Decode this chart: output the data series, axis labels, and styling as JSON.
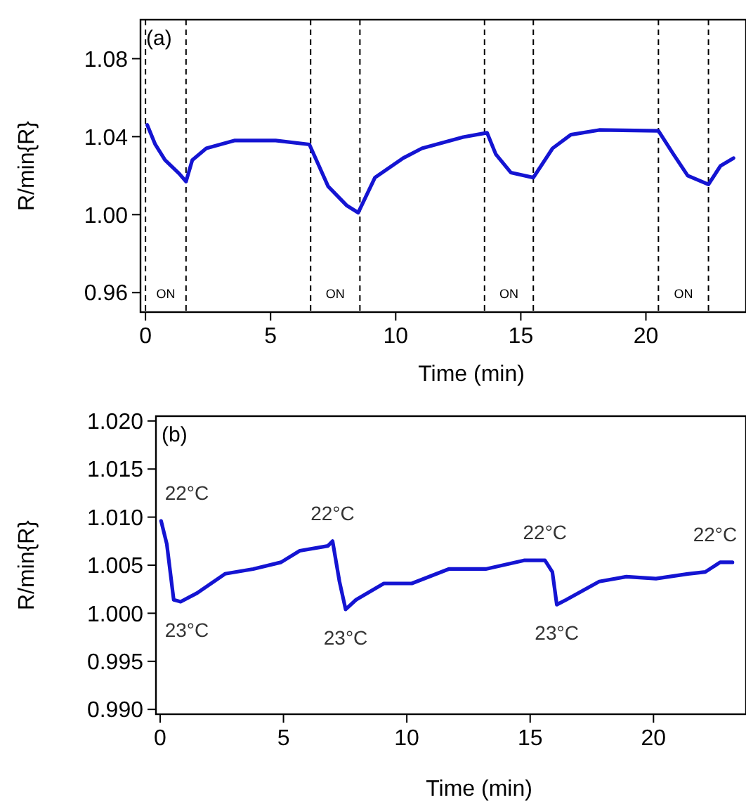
{
  "chart_data": [
    {
      "type": "line",
      "title": "(a)",
      "xlabel": "Time (min)",
      "ylabel": "R/min{R}",
      "xlim": [
        -0.2,
        24
      ],
      "xticks": [
        0,
        5,
        10,
        15,
        20
      ],
      "ylim": [
        0.95,
        1.1
      ],
      "yticks": [
        {
          "value": 0.96,
          "label": "0.96"
        },
        {
          "value": 1.0,
          "label": "1.00"
        },
        {
          "value": 1.04,
          "label": "1.04"
        },
        {
          "value": 1.08,
          "label": "1.08"
        }
      ],
      "x": [
        0.07,
        0.39,
        0.78,
        1.35,
        1.62,
        1.87,
        2.43,
        3.55,
        5.2,
        6.55,
        7.3,
        8.05,
        8.5,
        9.17,
        10.3,
        11.05,
        12.7,
        13.65,
        14.0,
        14.6,
        15.5,
        16.27,
        17.0,
        18.13,
        20.5,
        21.1,
        21.67,
        22.5,
        22.98,
        23.5
      ],
      "series": [
        {
          "color": "#1414d2",
          "values": [
            1.046,
            1.036,
            1.028,
            1.021,
            1.017,
            1.028,
            1.034,
            1.038,
            1.038,
            1.036,
            1.0145,
            1.0046,
            1.001,
            1.019,
            1.029,
            1.034,
            1.0398,
            1.042,
            1.031,
            1.0216,
            1.019,
            1.034,
            1.041,
            1.0434,
            1.043,
            1.031,
            1.02,
            1.0155,
            1.025,
            1.029
          ]
        }
      ],
      "ref_lines": [
        {
          "axis": "x",
          "value": 0.0,
          "label": "ON",
          "line_style": "dashed"
        },
        {
          "axis": "x",
          "value": 1.62,
          "line_style": "dashed"
        },
        {
          "axis": "x",
          "value": 6.6,
          "label": "ON",
          "line_style": "dashed"
        },
        {
          "axis": "x",
          "value": 8.57,
          "line_style": "dashed"
        },
        {
          "axis": "x",
          "value": 13.55,
          "label": "ON",
          "line_style": "dashed"
        },
        {
          "axis": "x",
          "value": 15.5,
          "line_style": "dashed"
        },
        {
          "axis": "x",
          "value": 20.5,
          "label": "ON",
          "line_style": "dashed"
        },
        {
          "axis": "x",
          "value": 22.5,
          "line_style": "dashed"
        }
      ],
      "line_style": "solid",
      "marker": "none"
    },
    {
      "type": "line",
      "title": "(b)",
      "xlabel": "Time (min)",
      "ylabel": "R/min{R}",
      "xlim": [
        -0.17,
        23.75
      ],
      "xticks": [
        0,
        5,
        10,
        15,
        20
      ],
      "ylim": [
        0.9895,
        1.0205
      ],
      "yticks": [
        {
          "value": 0.99,
          "label": "0.990"
        },
        {
          "value": 0.995,
          "label": "0.995"
        },
        {
          "value": 1.0,
          "label": "1.000"
        },
        {
          "value": 1.005,
          "label": "1.005"
        },
        {
          "value": 1.01,
          "label": "1.010"
        },
        {
          "value": 1.015,
          "label": "1.015"
        },
        {
          "value": 1.02,
          "label": "1.020"
        }
      ],
      "x": [
        0.04,
        0.27,
        0.55,
        0.83,
        1.5,
        2.63,
        3.77,
        4.9,
        5.66,
        6.8,
        6.99,
        7.27,
        7.52,
        7.94,
        9.07,
        10.2,
        11.7,
        13.2,
        14.75,
        15.6,
        15.9,
        16.08,
        16.46,
        17.8,
        18.9,
        20.1,
        21.4,
        22.1,
        22.7,
        23.2
      ],
      "series": [
        {
          "color": "#1414d2",
          "values": [
            1.0096,
            1.0072,
            1.0014,
            1.0012,
            1.0021,
            1.0041,
            1.0046,
            1.0053,
            1.0065,
            1.007,
            1.0075,
            1.0033,
            1.0004,
            1.0014,
            1.0031,
            1.0031,
            1.0046,
            1.0046,
            1.0055,
            1.0055,
            1.0043,
            1.0009,
            1.0014,
            1.0033,
            1.0038,
            1.0036,
            1.0041,
            1.0043,
            1.0053,
            1.0053
          ]
        }
      ],
      "annotations": [
        {
          "text": "22°C",
          "x": 0.04,
          "y": 1.0096
        },
        {
          "text": "22°C",
          "x": 6.99,
          "y": 1.0075
        },
        {
          "text": "22°C",
          "x": 15.6,
          "y": 1.0055
        },
        {
          "text": "22°C",
          "x": 23.2,
          "y": 1.0053
        },
        {
          "text": "23°C",
          "x": 0.83,
          "y": 1.0012
        },
        {
          "text": "23°C",
          "x": 7.52,
          "y": 1.0004
        },
        {
          "text": "23°C",
          "x": 16.08,
          "y": 1.0009
        }
      ],
      "line_style": "solid",
      "marker": "none"
    }
  ]
}
